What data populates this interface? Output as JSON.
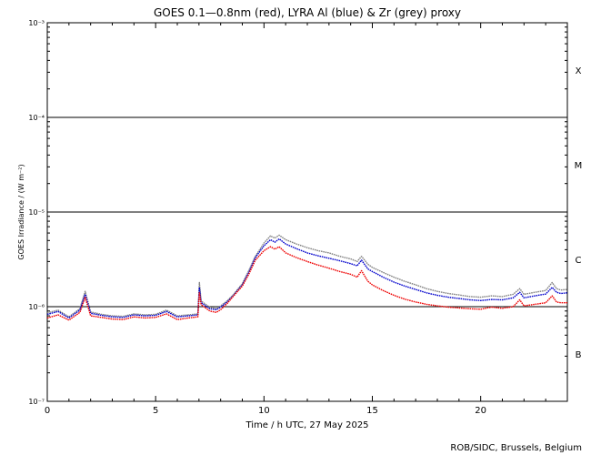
{
  "chart_data": {
    "type": "line",
    "title": "GOES 0.1—0.8nm (red), LYRA Al (blue) & Zr (grey) proxy",
    "xlabel": "Time / h UTC, 27 May 2025",
    "ylabel": "GOES Irradiance / (W m⁻²)",
    "credit": "ROB/SIDC, Brussels, Belgium",
    "xlim": [
      0,
      24
    ],
    "ylim": [
      1e-07,
      0.001
    ],
    "yscale": "log",
    "x_ticks": [
      {
        "value": 0,
        "label": "0"
      },
      {
        "value": 5,
        "label": "5"
      },
      {
        "value": 10,
        "label": "10"
      },
      {
        "value": 15,
        "label": "15"
      },
      {
        "value": 20,
        "label": "20"
      }
    ],
    "y_ticks": [
      {
        "exp": -7,
        "label": "10⁻⁷"
      },
      {
        "exp": -6,
        "label": "10⁻⁶"
      },
      {
        "exp": -5,
        "label": "10⁻⁵"
      },
      {
        "exp": -4,
        "label": "10⁻⁴"
      },
      {
        "exp": -3,
        "label": "10⁻³"
      }
    ],
    "threshold_lines": [
      1e-06,
      1e-05,
      0.0001
    ],
    "flare_classes": [
      {
        "label": "X",
        "exp_center": -3.5
      },
      {
        "label": "M",
        "exp_center": -4.5
      },
      {
        "label": "C",
        "exp_center": -5.5
      },
      {
        "label": "B",
        "exp_center": -6.5
      }
    ],
    "series": [
      {
        "color": "#808080",
        "x": [
          0,
          0.5,
          1,
          1.5,
          1.75,
          2,
          2.5,
          3,
          3.5,
          4,
          4.5,
          5,
          5.5,
          6,
          6.5,
          6.95,
          7.02,
          7.1,
          7.5,
          7.8,
          8,
          8.3,
          8.6,
          9,
          9.3,
          9.6,
          10,
          10.3,
          10.5,
          10.7,
          11,
          11.5,
          12,
          12.5,
          13,
          13.5,
          14,
          14.3,
          14.5,
          14.8,
          15,
          15.5,
          16,
          16.5,
          17,
          17.5,
          18,
          18.5,
          19,
          19.5,
          20,
          20.5,
          21,
          21.5,
          21.8,
          22,
          22.5,
          23,
          23.3,
          23.5,
          23.7,
          24
        ],
        "y": [
          8.6e-07,
          9.2e-07,
          7.8e-07,
          9.5e-07,
          1.45e-06,
          8.8e-07,
          8.3e-07,
          8e-07,
          7.9e-07,
          8.4e-07,
          8.2e-07,
          8.3e-07,
          9.2e-07,
          8e-07,
          8.2e-07,
          8.4e-07,
          1.8e-06,
          1.15e-06,
          9.8e-07,
          9.6e-07,
          1.02e-06,
          1.15e-06,
          1.35e-06,
          1.75e-06,
          2.4e-06,
          3.4e-06,
          4.7e-06,
          5.6e-06,
          5.3e-06,
          5.7e-06,
          5.1e-06,
          4.6e-06,
          4.2e-06,
          3.9e-06,
          3.7e-06,
          3.4e-06,
          3.2e-06,
          3e-06,
          3.4e-06,
          2.8e-06,
          2.6e-06,
          2.3e-06,
          2.05e-06,
          1.85e-06,
          1.7e-06,
          1.55e-06,
          1.45e-06,
          1.38e-06,
          1.33e-06,
          1.28e-06,
          1.26e-06,
          1.3e-06,
          1.28e-06,
          1.35e-06,
          1.55e-06,
          1.35e-06,
          1.42e-06,
          1.48e-06,
          1.8e-06,
          1.55e-06,
          1.5e-06,
          1.52e-06
        ]
      },
      {
        "color": "#0000cc",
        "x": [
          0,
          0.5,
          1,
          1.5,
          1.75,
          2,
          2.5,
          3,
          3.5,
          4,
          4.5,
          5,
          5.5,
          6,
          6.5,
          6.95,
          7.02,
          7.1,
          7.5,
          7.8,
          8,
          8.3,
          8.6,
          9,
          9.3,
          9.6,
          10,
          10.3,
          10.5,
          10.7,
          11,
          11.5,
          12,
          12.5,
          13,
          13.5,
          14,
          14.3,
          14.5,
          14.8,
          15,
          15.5,
          16,
          16.5,
          17,
          17.5,
          18,
          18.5,
          19,
          19.5,
          20,
          20.5,
          21,
          21.5,
          21.8,
          22,
          22.5,
          23,
          23.3,
          23.5,
          23.7,
          24
        ],
        "y": [
          8.3e-07,
          8.9e-07,
          7.6e-07,
          9.2e-07,
          1.35e-06,
          8.5e-07,
          8.1e-07,
          7.8e-07,
          7.7e-07,
          8.2e-07,
          8e-07,
          8.1e-07,
          8.9e-07,
          7.8e-07,
          8e-07,
          8.2e-07,
          1.6e-06,
          1.1e-06,
          9.5e-07,
          9.3e-07,
          9.9e-07,
          1.12e-06,
          1.32e-06,
          1.7e-06,
          2.3e-06,
          3.3e-06,
          4.4e-06,
          5.1e-06,
          4.8e-06,
          5.2e-06,
          4.6e-06,
          4.1e-06,
          3.7e-06,
          3.45e-06,
          3.25e-06,
          3.05e-06,
          2.85e-06,
          2.7e-06,
          3.1e-06,
          2.5e-06,
          2.35e-06,
          2.05e-06,
          1.82e-06,
          1.65e-06,
          1.52e-06,
          1.4e-06,
          1.32e-06,
          1.26e-06,
          1.22e-06,
          1.18e-06,
          1.16e-06,
          1.19e-06,
          1.18e-06,
          1.24e-06,
          1.42e-06,
          1.24e-06,
          1.3e-06,
          1.36e-06,
          1.6e-06,
          1.42e-06,
          1.38e-06,
          1.4e-06
        ]
      },
      {
        "color": "#ee0000",
        "x": [
          0,
          0.5,
          1,
          1.5,
          1.75,
          2,
          2.5,
          3,
          3.5,
          4,
          4.5,
          5,
          5.5,
          6,
          6.5,
          6.95,
          7.02,
          7.1,
          7.5,
          7.8,
          8,
          8.3,
          8.6,
          9,
          9.3,
          9.6,
          10,
          10.3,
          10.5,
          10.7,
          11,
          11.5,
          12,
          12.5,
          13,
          13.5,
          14,
          14.3,
          14.5,
          14.8,
          15,
          15.5,
          16,
          16.5,
          17,
          17.5,
          18,
          18.5,
          19,
          19.5,
          20,
          20.5,
          21,
          21.5,
          21.8,
          22,
          22.5,
          23,
          23.3,
          23.5,
          23.7,
          24
        ],
        "y": [
          7.6e-07,
          8.2e-07,
          7.2e-07,
          8.7e-07,
          1.25e-06,
          8e-07,
          7.7e-07,
          7.4e-07,
          7.3e-07,
          7.8e-07,
          7.6e-07,
          7.7e-07,
          8.4e-07,
          7.3e-07,
          7.6e-07,
          7.8e-07,
          1.4e-06,
          1.05e-06,
          9e-07,
          8.7e-07,
          9.3e-07,
          1.08e-06,
          1.3e-06,
          1.65e-06,
          2.2e-06,
          3.1e-06,
          3.9e-06,
          4.3e-06,
          4.05e-06,
          4.3e-06,
          3.7e-06,
          3.3e-06,
          3e-06,
          2.75e-06,
          2.55e-06,
          2.35e-06,
          2.2e-06,
          2.05e-06,
          2.4e-06,
          1.85e-06,
          1.7e-06,
          1.48e-06,
          1.32e-06,
          1.2e-06,
          1.12e-06,
          1.06e-06,
          1.02e-06,
          9.9e-07,
          9.7e-07,
          9.5e-07,
          9.4e-07,
          9.9e-07,
          9.6e-07,
          1e-06,
          1.18e-06,
          1.02e-06,
          1.06e-06,
          1.1e-06,
          1.3e-06,
          1.12e-06,
          1.1e-06,
          1.1e-06
        ]
      }
    ]
  }
}
